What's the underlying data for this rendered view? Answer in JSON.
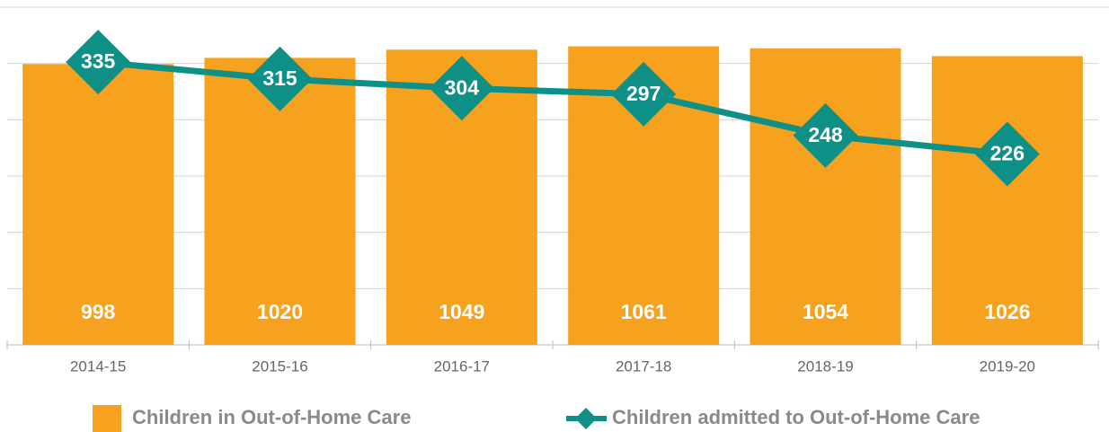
{
  "chart_data": {
    "type": "bar-line",
    "categories": [
      "2014-15",
      "2015-16",
      "2016-17",
      "2017-18",
      "2018-19",
      "2019-20"
    ],
    "series": [
      {
        "name": "Children in Out-of-Home Care",
        "type": "bar",
        "color": "#f6a21e",
        "values": [
          998,
          1020,
          1049,
          1061,
          1054,
          1026
        ]
      },
      {
        "name": "Children admitted to Out-of-Home Care",
        "type": "line",
        "axis": "y2",
        "color": "#0f9086",
        "values": [
          335,
          315,
          304,
          297,
          248,
          226
        ]
      }
    ],
    "ylim": [
      0,
      1200
    ],
    "yticks": [
      0,
      200,
      400,
      600,
      800,
      1000,
      1200
    ],
    "y2lim": [
      0,
      400
    ],
    "grid": true
  }
}
